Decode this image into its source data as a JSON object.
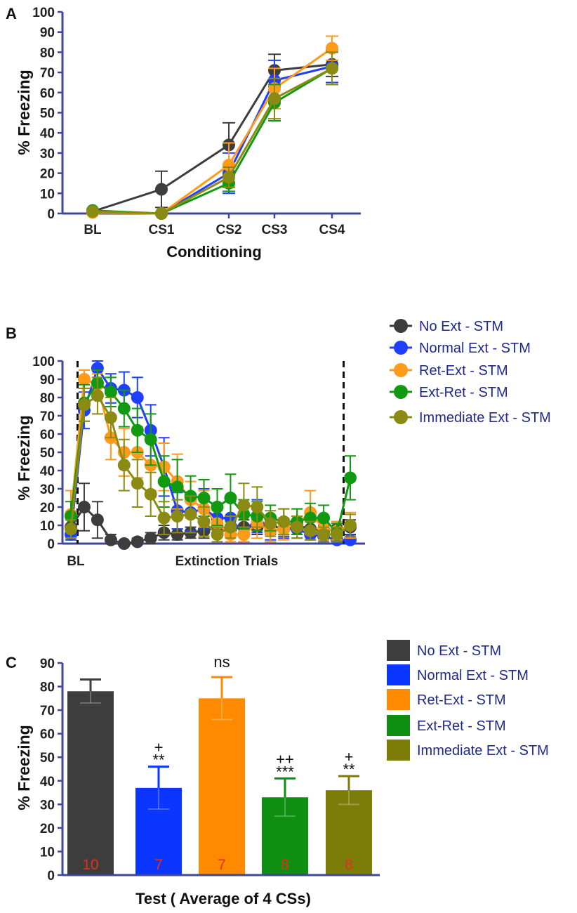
{
  "chart_data": [
    {
      "panel": "A",
      "type": "line",
      "title": "",
      "xlabel": "Conditioning",
      "ylabel": "% Freezing",
      "ylim": [
        0,
        100
      ],
      "yticks": [
        "0",
        "10",
        "20",
        "30",
        "40",
        "50",
        "60",
        "70",
        "80",
        "90",
        "100"
      ],
      "categories": [
        "BL",
        "CS1",
        "CS2",
        "CS3",
        "CS4"
      ],
      "series": [
        {
          "name": "No Ext - STM",
          "color": "#3d3d3d",
          "values": [
            1,
            12,
            34,
            71,
            74
          ],
          "err": [
            0.5,
            9,
            11,
            8,
            6
          ]
        },
        {
          "name": "Normal Ext - STM",
          "color": "#1f3fff",
          "values": [
            1,
            0,
            20,
            66,
            73
          ],
          "err": [
            0.5,
            0.5,
            10,
            10,
            8
          ]
        },
        {
          "name": "Ret-Ext - STM",
          "color": "#ff9a1a",
          "values": [
            0.5,
            0,
            24,
            62,
            82
          ],
          "err": [
            0.5,
            0.5,
            11,
            10,
            6
          ]
        },
        {
          "name": "Ext-Ret - STM",
          "color": "#119911",
          "values": [
            1.5,
            0,
            15,
            55,
            72
          ],
          "err": [
            0.5,
            0.5,
            4,
            9,
            8
          ]
        },
        {
          "name": "Immediate Ext - STM",
          "color": "#8b8b14",
          "values": [
            1,
            0,
            18,
            57,
            72
          ],
          "err": [
            0.5,
            0.5,
            5,
            10,
            8
          ]
        }
      ]
    },
    {
      "panel": "B",
      "type": "line",
      "xlabel": "Extinction Trials",
      "xlabel_bl": "BL",
      "ylabel": "% Freezing",
      "ylim": [
        0,
        100
      ],
      "yticks": [
        "0",
        "10",
        "20",
        "30",
        "40",
        "50",
        "60",
        "70",
        "80",
        "90",
        "100"
      ],
      "num_points": 22,
      "dashed_lines_after_index": [
        0,
        20
      ],
      "legend": [
        "No Ext - STM",
        "Normal Ext - STM",
        "Ret-Ext - STM",
        "Ext-Ret - STM",
        "Immediate Ext - STM"
      ],
      "series": [
        {
          "name": "No Ext - STM",
          "color": "#3d3d3d",
          "values": [
            9,
            20,
            13,
            2,
            0,
            1,
            3,
            6,
            5,
            6,
            7,
            9,
            8,
            9,
            9,
            10,
            8,
            10,
            8,
            7,
            8,
            9
          ],
          "err": [
            4,
            13,
            10,
            3,
            1,
            2,
            3,
            4,
            3,
            3,
            4,
            5,
            4,
            4,
            4,
            5,
            4,
            5,
            4,
            3,
            4,
            4
          ]
        },
        {
          "name": "Normal Ext - STM",
          "color": "#1f3fff",
          "values": [
            5,
            73,
            96,
            85,
            84,
            80,
            62,
            42,
            18,
            17,
            19,
            14,
            14,
            5,
            15,
            7,
            8,
            8,
            5,
            4,
            2,
            2
          ],
          "err": [
            3,
            10,
            5,
            8,
            10,
            11,
            14,
            16,
            10,
            10,
            11,
            8,
            9,
            4,
            9,
            5,
            5,
            5,
            3,
            3,
            2,
            2
          ]
        },
        {
          "name": "Ret-Ext - STM",
          "color": "#ff9a1a",
          "values": [
            16,
            90,
            87,
            58,
            50,
            50,
            43,
            42,
            34,
            24,
            19,
            11,
            5,
            5,
            11,
            7,
            8,
            11,
            17,
            8,
            7,
            10
          ],
          "err": [
            13,
            5,
            6,
            12,
            13,
            14,
            14,
            13,
            15,
            10,
            10,
            7,
            4,
            4,
            8,
            6,
            6,
            8,
            12,
            6,
            5,
            7
          ]
        },
        {
          "name": "Ext-Ret - STM",
          "color": "#119911",
          "values": [
            15,
            77,
            88,
            83,
            74,
            62,
            57,
            34,
            31,
            26,
            25,
            20,
            25,
            16,
            15,
            14,
            12,
            12,
            14,
            14,
            6,
            36
          ],
          "err": [
            8,
            10,
            7,
            8,
            10,
            12,
            14,
            14,
            15,
            11,
            10,
            10,
            13,
            8,
            8,
            7,
            7,
            7,
            8,
            7,
            5,
            12
          ]
        },
        {
          "name": "Immediate Ext - STM",
          "color": "#8b8b14",
          "values": [
            8,
            76,
            81,
            69,
            43,
            33,
            27,
            14,
            15,
            16,
            12,
            5,
            9,
            21,
            20,
            11,
            12,
            9,
            7,
            5,
            5,
            10
          ],
          "err": [
            5,
            9,
            10,
            11,
            14,
            13,
            12,
            9,
            9,
            10,
            8,
            4,
            6,
            12,
            11,
            7,
            7,
            6,
            5,
            4,
            4,
            6
          ]
        }
      ]
    },
    {
      "panel": "C",
      "type": "bar",
      "xlabel": "Test ( Average of 4 CSs)",
      "ylabel": "% Freezing",
      "ylim": [
        0,
        90
      ],
      "yticks": [
        "0",
        "10",
        "20",
        "30",
        "40",
        "50",
        "60",
        "70",
        "80",
        "90"
      ],
      "categories": [
        "No Ext - STM",
        "Normal Ext - STM",
        "Ret-Ext - STM",
        "Ext-Ret - STM",
        "Immediate Ext - STM"
      ],
      "values": [
        78,
        37,
        75,
        33,
        36
      ],
      "err": [
        5,
        9,
        9,
        8,
        6
      ],
      "colors": [
        "#3d3d3d",
        "#0a36ff",
        "#ff8a00",
        "#0f8f12",
        "#7c7c08"
      ],
      "n_labels": [
        "10",
        "7",
        "7",
        "8",
        "8"
      ],
      "stars": [
        "",
        "**",
        "ns",
        "***",
        "**"
      ],
      "plus": [
        "",
        "+",
        "",
        "++",
        "+"
      ]
    }
  ],
  "panel_letters": [
    "A",
    "B",
    "C"
  ]
}
